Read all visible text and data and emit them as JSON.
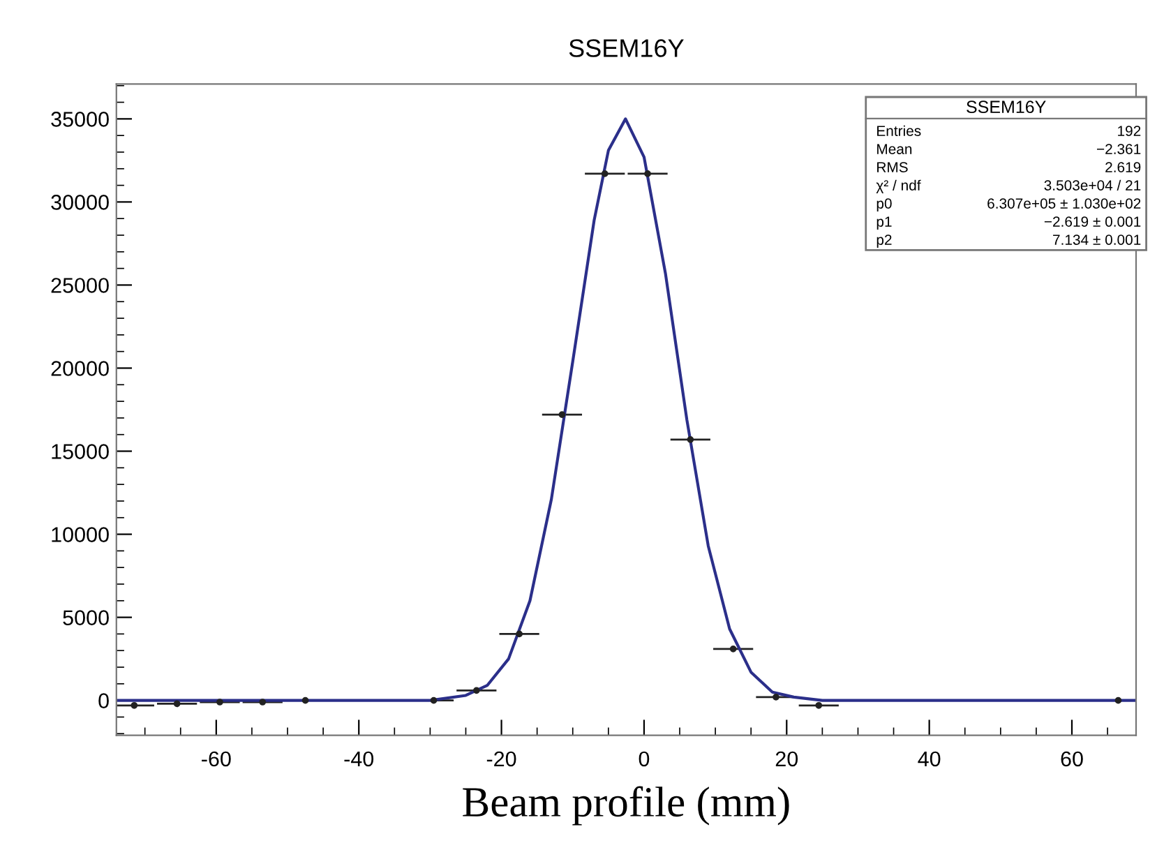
{
  "chart_data": {
    "type": "scatter",
    "title": "SSEM16Y",
    "xlabel": "Beam profile (mm)",
    "xlim": [
      -74,
      69
    ],
    "ylim": [
      -2100,
      37100
    ],
    "xticks": [
      -60,
      -40,
      -20,
      0,
      20,
      40,
      60
    ],
    "yticks": [
      0,
      5000,
      10000,
      15000,
      20000,
      25000,
      30000,
      35000
    ],
    "grid": false,
    "legend": false,
    "series": [
      {
        "color": "#222222",
        "marker": "circle",
        "x": [
          -71.5,
          -65.5,
          -59.5,
          -53.5,
          -47.5,
          -41.5,
          -35.5,
          -29.5,
          -23.5,
          -17.5,
          -11.5,
          -5.5,
          0.5,
          6.5,
          12.5,
          18.5,
          24.5,
          30.5,
          36.5,
          42.5,
          48.5,
          54.5,
          60.5,
          66.5
        ],
        "values": [
          -300,
          -200,
          -100,
          -100,
          0,
          null,
          null,
          0,
          600,
          4000,
          17200,
          31700,
          31700,
          15700,
          3100,
          200,
          -300,
          null,
          null,
          null,
          null,
          null,
          null,
          0
        ],
        "xerrors": [
          2.8,
          2.8,
          2.8,
          2.8,
          2.8,
          null,
          null,
          2.8,
          2.8,
          2.8,
          2.8,
          2.8,
          2.8,
          2.8,
          2.8,
          2.8,
          2.8,
          null,
          null,
          null,
          null,
          null,
          null,
          2.8
        ]
      },
      {
        "type": "line",
        "color": "#2b2f8a",
        "line_style": "solid",
        "x": [
          -74,
          -30,
          -25,
          -22,
          -19,
          -16,
          -13,
          -10,
          -7,
          -5,
          -2.6,
          0,
          3,
          6,
          9,
          12,
          15,
          18,
          21,
          25,
          30,
          69
        ],
        "values": [
          0,
          0,
          300,
          900,
          2500,
          6000,
          12100,
          20400,
          28900,
          33100,
          35000,
          32700,
          25700,
          16900,
          9300,
          4300,
          1700,
          500,
          200,
          0,
          0,
          0
        ]
      }
    ],
    "annotations": [
      "SSEM16Y",
      "Entries",
      "192",
      "Mean",
      "−2.361",
      "RMS",
      "2.619",
      "χ² / ndf",
      "3.503e+04 / 21",
      "p0",
      "6.307e+05 ± 1.030e+02",
      "p1",
      "−2.619 ± 0.001",
      "p2",
      "7.134 ± 0.001"
    ]
  }
}
